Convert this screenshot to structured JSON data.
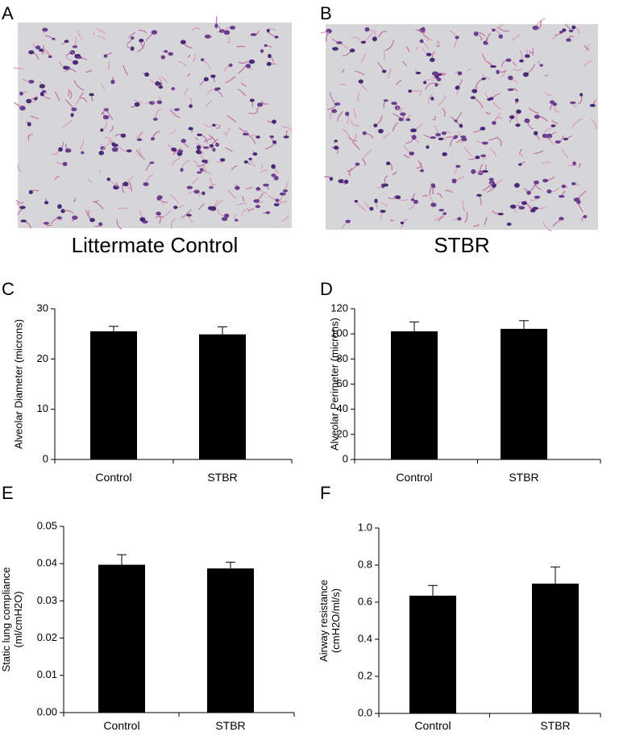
{
  "images": [
    {
      "letter": "A",
      "caption": "Littermate Control"
    },
    {
      "letter": "B",
      "caption": "STBR"
    }
  ],
  "chart_data": [
    {
      "type": "bar",
      "letter": "C",
      "ylabel": [
        "Alveolar Diameter (microns)"
      ],
      "categories": [
        "Control",
        "STBR"
      ],
      "values": [
        25.5,
        24.9
      ],
      "errors": [
        1.0,
        1.5
      ],
      "color": "#000000",
      "ylim": [
        0,
        30
      ],
      "yticks": [
        0,
        10,
        20,
        30
      ]
    },
    {
      "type": "bar",
      "letter": "D",
      "ylabel": [
        "Alveolar Perimeter (microns)"
      ],
      "categories": [
        "Control",
        "STBR"
      ],
      "values": [
        102,
        104
      ],
      "errors": [
        7.5,
        6.5
      ],
      "color": "#000000",
      "ylim": [
        0,
        120
      ],
      "yticks": [
        0,
        20,
        40,
        60,
        80,
        100,
        120
      ]
    },
    {
      "type": "bar",
      "letter": "E",
      "ylabel": [
        "Static lung compliance",
        "(ml/cmH2O)"
      ],
      "categories": [
        "Control",
        "STBR"
      ],
      "values": [
        0.0397,
        0.0387
      ],
      "errors": [
        0.0027,
        0.0017
      ],
      "color": "#000000",
      "ylim": [
        0,
        0.05
      ],
      "yticks": [
        {
          "value": 0,
          "label": "0.00"
        },
        0.01,
        0.02,
        0.03,
        0.04,
        0.05
      ]
    },
    {
      "type": "bar",
      "letter": "F",
      "ylabel": [
        "Airway resistance",
        "(cmH2O/ml/s)"
      ],
      "categories": [
        "Control",
        "STBR"
      ],
      "values": [
        0.635,
        0.7
      ],
      "errors": [
        0.055,
        0.09
      ],
      "color": "#000000",
      "ylim": [
        0,
        1.0
      ],
      "yticks": [
        {
          "value": 0,
          "label": "0.0"
        },
        0.2,
        0.4,
        0.6,
        0.8,
        {
          "value": 1.0,
          "label": "1.0"
        }
      ]
    }
  ]
}
